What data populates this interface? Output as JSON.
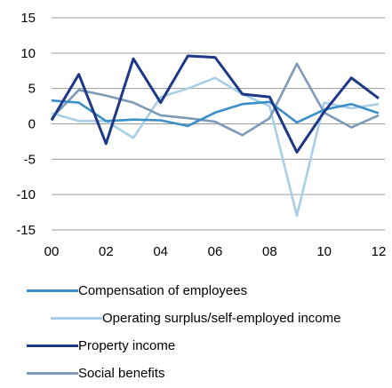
{
  "chart_data": {
    "type": "line",
    "x": [
      "00",
      "01",
      "02",
      "03",
      "04",
      "05",
      "06",
      "07",
      "08",
      "09",
      "10",
      "11",
      "12"
    ],
    "x_tick_labels": [
      "00",
      "02",
      "04",
      "06",
      "08",
      "10",
      "12"
    ],
    "y_tick_labels": [
      "15",
      "10",
      "5",
      "0",
      "-5",
      "-10",
      "-15"
    ],
    "ylim": [
      -15,
      15
    ],
    "grid": "horizontal",
    "legend_position": "bottom",
    "series": [
      {
        "name": "Compensation of employees",
        "color": "#3a8fc9",
        "values": [
          3.3,
          3.0,
          0.4,
          0.6,
          0.5,
          -0.3,
          1.6,
          2.8,
          3.1,
          0.2,
          2.0,
          2.8,
          1.5
        ]
      },
      {
        "name": "Operating surplus/self-employed income",
        "color": "#a9cfe8",
        "values": [
          1.5,
          0.4,
          0.4,
          -2.0,
          3.8,
          5.0,
          6.5,
          4.2,
          2.5,
          -13.0,
          3.0,
          2.2,
          2.8
        ]
      },
      {
        "name": "Property income",
        "color": "#1e3888",
        "values": [
          0.5,
          7.0,
          -2.8,
          9.2,
          3.0,
          9.6,
          9.4,
          4.2,
          3.8,
          -4.0,
          1.7,
          6.5,
          3.6
        ]
      },
      {
        "name": "Social benefits",
        "color": "#7d9ab9",
        "values": [
          0.8,
          4.8,
          4.0,
          3.0,
          1.2,
          0.8,
          0.3,
          -1.6,
          0.8,
          8.5,
          1.6,
          -0.5,
          1.2
        ]
      }
    ]
  }
}
